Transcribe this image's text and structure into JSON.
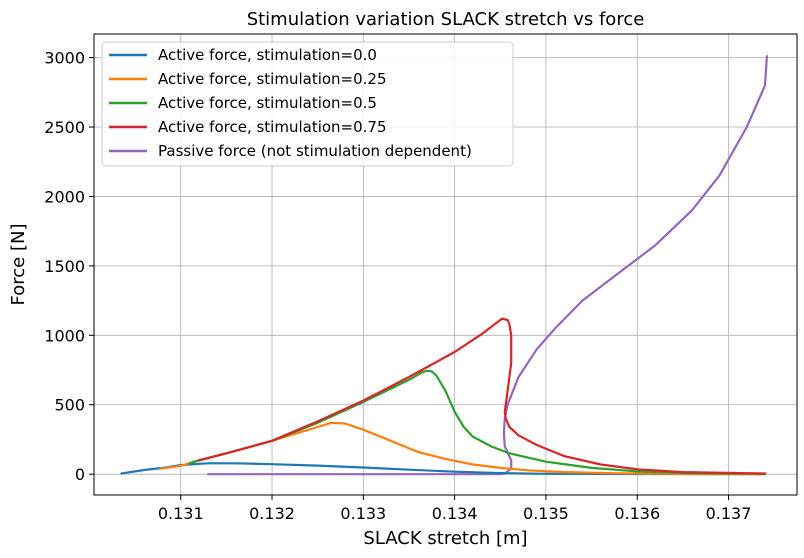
{
  "chart_data": {
    "type": "line",
    "title": "Stimulation variation SLACK stretch vs force",
    "xlabel": "SLACK stretch [m]",
    "ylabel": "Force [N]",
    "xlim": [
      0.13005,
      0.13775
    ],
    "ylim": [
      -150,
      3170
    ],
    "xticks": [
      0.131,
      0.132,
      0.133,
      0.134,
      0.135,
      0.136,
      0.137
    ],
    "xtick_labels": [
      "0.131",
      "0.132",
      "0.133",
      "0.134",
      "0.135",
      "0.136",
      "0.137"
    ],
    "yticks": [
      0,
      500,
      1000,
      1500,
      2000,
      2500,
      3000
    ],
    "ytick_labels": [
      "0",
      "500",
      "1000",
      "1500",
      "2000",
      "2500",
      "3000"
    ],
    "grid": true,
    "legend_position": "top-left",
    "series": [
      {
        "name": "Passive force (not stimulation dependent)",
        "color": "#9467bd",
        "points": [
          [
            0.1313,
            0
          ],
          [
            0.1345,
            0
          ],
          [
            0.13455,
            5
          ],
          [
            0.13462,
            40
          ],
          [
            0.13462,
            100
          ],
          [
            0.13455,
            200
          ],
          [
            0.13454,
            300
          ],
          [
            0.13455,
            400
          ],
          [
            0.13458,
            500
          ],
          [
            0.1347,
            700
          ],
          [
            0.1349,
            900
          ],
          [
            0.1351,
            1050
          ],
          [
            0.1354,
            1250
          ],
          [
            0.1358,
            1450
          ],
          [
            0.1362,
            1650
          ],
          [
            0.1366,
            1900
          ],
          [
            0.1369,
            2150
          ],
          [
            0.1372,
            2500
          ],
          [
            0.1374,
            2800
          ],
          [
            0.13742,
            3010
          ]
        ]
      },
      {
        "name": "Active force, stimulation=0.0",
        "color": "#1f77b4",
        "points": [
          [
            0.13035,
            5
          ],
          [
            0.1304,
            10
          ],
          [
            0.1306,
            30
          ],
          [
            0.1308,
            45
          ],
          [
            0.131,
            65
          ],
          [
            0.1312,
            75
          ],
          [
            0.1313,
            78
          ],
          [
            0.1316,
            78
          ],
          [
            0.132,
            72
          ],
          [
            0.1325,
            62
          ],
          [
            0.133,
            48
          ],
          [
            0.1335,
            32
          ],
          [
            0.134,
            18
          ],
          [
            0.1345,
            8
          ],
          [
            0.135,
            3
          ],
          [
            0.136,
            1
          ],
          [
            0.137,
            0
          ],
          [
            0.1374,
            0
          ]
        ]
      },
      {
        "name": "Active force, stimulation=0.25",
        "color": "#ff7f0e",
        "points": [
          [
            0.13078,
            40
          ],
          [
            0.131,
            60
          ],
          [
            0.1312,
            100
          ],
          [
            0.1315,
            150
          ],
          [
            0.132,
            240
          ],
          [
            0.1325,
            340
          ],
          [
            0.13265,
            370
          ],
          [
            0.1328,
            365
          ],
          [
            0.133,
            320
          ],
          [
            0.1333,
            240
          ],
          [
            0.1336,
            160
          ],
          [
            0.1339,
            110
          ],
          [
            0.1342,
            70
          ],
          [
            0.1345,
            45
          ],
          [
            0.1348,
            28
          ],
          [
            0.1352,
            15
          ],
          [
            0.1358,
            6
          ],
          [
            0.1365,
            2
          ],
          [
            0.1374,
            0
          ]
        ]
      },
      {
        "name": "Active force, stimulation=0.5",
        "color": "#2ca02c",
        "points": [
          [
            0.1311,
            80
          ],
          [
            0.1312,
            100
          ],
          [
            0.1315,
            150
          ],
          [
            0.132,
            240
          ],
          [
            0.1325,
            370
          ],
          [
            0.133,
            520
          ],
          [
            0.1335,
            680
          ],
          [
            0.13365,
            735
          ],
          [
            0.1337,
            745
          ],
          [
            0.13375,
            740
          ],
          [
            0.1338,
            710
          ],
          [
            0.1339,
            600
          ],
          [
            0.134,
            450
          ],
          [
            0.1341,
            340
          ],
          [
            0.1342,
            270
          ],
          [
            0.1344,
            200
          ],
          [
            0.1346,
            150
          ],
          [
            0.135,
            90
          ],
          [
            0.1355,
            45
          ],
          [
            0.136,
            20
          ],
          [
            0.1366,
            8
          ],
          [
            0.1374,
            3
          ]
        ]
      },
      {
        "name": "Active force, stimulation=0.75",
        "color": "#d62728",
        "points": [
          [
            0.1312,
            100
          ],
          [
            0.1315,
            150
          ],
          [
            0.132,
            240
          ],
          [
            0.1325,
            380
          ],
          [
            0.133,
            530
          ],
          [
            0.1335,
            700
          ],
          [
            0.134,
            880
          ],
          [
            0.1343,
            1010
          ],
          [
            0.1345,
            1110
          ],
          [
            0.13452,
            1120
          ],
          [
            0.13458,
            1110
          ],
          [
            0.1346,
            1080
          ],
          [
            0.13462,
            1000
          ],
          [
            0.13462,
            800
          ],
          [
            0.13458,
            600
          ],
          [
            0.13455,
            450
          ],
          [
            0.13456,
            400
          ],
          [
            0.1346,
            340
          ],
          [
            0.1347,
            280
          ],
          [
            0.1349,
            210
          ],
          [
            0.1352,
            130
          ],
          [
            0.1356,
            70
          ],
          [
            0.136,
            35
          ],
          [
            0.1365,
            15
          ],
          [
            0.1374,
            5
          ]
        ]
      }
    ],
    "legend_order": [
      1,
      2,
      3,
      4,
      0
    ]
  }
}
